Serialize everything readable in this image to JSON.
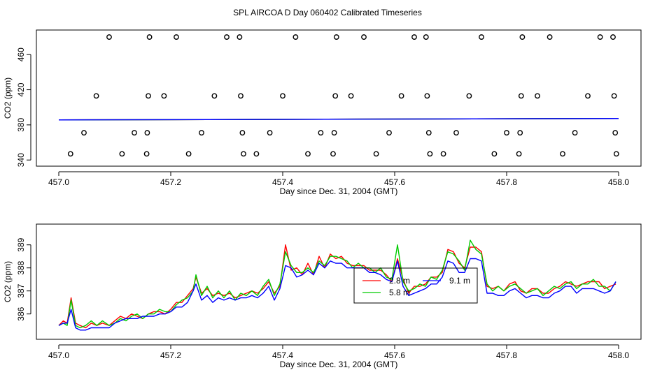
{
  "title": "SPL AIRCOA D  Day 060402  Calibrated Timeseries",
  "chart_data": [
    {
      "type": "scatter+line",
      "title": "",
      "xlabel": "Day since Dec. 31, 2004 (GMT)",
      "ylabel": "CO2 (ppm)",
      "xlim": [
        456.96,
        458.04
      ],
      "ylim": [
        333,
        488
      ],
      "x_ticks": [
        457.0,
        457.2,
        457.4,
        457.6,
        457.8,
        458.0
      ],
      "x_tick_labels": [
        "457.0",
        "457.2",
        "457.4",
        "457.6",
        "457.8",
        "458.0"
      ],
      "y_ticks": [
        340,
        380,
        420,
        460
      ],
      "y_tick_labels": [
        "340",
        "380",
        "420",
        "460"
      ],
      "calibration_points": [
        {
          "x": 457.021,
          "y": 347
        },
        {
          "x": 457.045,
          "y": 371
        },
        {
          "x": 457.067,
          "y": 413
        },
        {
          "x": 457.09,
          "y": 480
        },
        {
          "x": 457.113,
          "y": 347
        },
        {
          "x": 457.135,
          "y": 371
        },
        {
          "x": 457.157,
          "y": 347
        },
        {
          "x": 457.158,
          "y": 371
        },
        {
          "x": 457.16,
          "y": 413
        },
        {
          "x": 457.162,
          "y": 480
        },
        {
          "x": 457.188,
          "y": 413
        },
        {
          "x": 457.21,
          "y": 480
        },
        {
          "x": 457.232,
          "y": 347
        },
        {
          "x": 457.255,
          "y": 371
        },
        {
          "x": 457.278,
          "y": 413
        },
        {
          "x": 457.3,
          "y": 480
        },
        {
          "x": 457.323,
          "y": 480
        },
        {
          "x": 457.325,
          "y": 413
        },
        {
          "x": 457.328,
          "y": 371
        },
        {
          "x": 457.33,
          "y": 347
        },
        {
          "x": 457.353,
          "y": 347
        },
        {
          "x": 457.377,
          "y": 371
        },
        {
          "x": 457.4,
          "y": 413
        },
        {
          "x": 457.423,
          "y": 480
        },
        {
          "x": 457.445,
          "y": 347
        },
        {
          "x": 457.468,
          "y": 371
        },
        {
          "x": 457.49,
          "y": 347
        },
        {
          "x": 457.492,
          "y": 371
        },
        {
          "x": 457.494,
          "y": 413
        },
        {
          "x": 457.496,
          "y": 480
        },
        {
          "x": 457.522,
          "y": 413
        },
        {
          "x": 457.545,
          "y": 480
        },
        {
          "x": 457.567,
          "y": 347
        },
        {
          "x": 457.59,
          "y": 371
        },
        {
          "x": 457.612,
          "y": 413
        },
        {
          "x": 457.635,
          "y": 480
        },
        {
          "x": 457.656,
          "y": 480
        },
        {
          "x": 457.658,
          "y": 413
        },
        {
          "x": 457.661,
          "y": 371
        },
        {
          "x": 457.663,
          "y": 347
        },
        {
          "x": 457.687,
          "y": 347
        },
        {
          "x": 457.71,
          "y": 371
        },
        {
          "x": 457.733,
          "y": 413
        },
        {
          "x": 457.755,
          "y": 480
        },
        {
          "x": 457.778,
          "y": 347
        },
        {
          "x": 457.8,
          "y": 371
        },
        {
          "x": 457.822,
          "y": 347
        },
        {
          "x": 457.824,
          "y": 371
        },
        {
          "x": 457.826,
          "y": 413
        },
        {
          "x": 457.828,
          "y": 480
        },
        {
          "x": 457.855,
          "y": 413
        },
        {
          "x": 457.877,
          "y": 480
        },
        {
          "x": 457.9,
          "y": 347
        },
        {
          "x": 457.922,
          "y": 371
        },
        {
          "x": 457.945,
          "y": 413
        },
        {
          "x": 457.967,
          "y": 480
        },
        {
          "x": 457.99,
          "y": 480
        },
        {
          "x": 457.992,
          "y": 413
        },
        {
          "x": 457.994,
          "y": 371
        },
        {
          "x": 457.996,
          "y": 347
        }
      ],
      "series": [
        {
          "name": "2.8 m",
          "color": "#ff0000",
          "x": [
            457.0,
            458.0
          ],
          "y": [
            385.6,
            387.3
          ]
        },
        {
          "name": "5.8 m",
          "color": "#00cc00",
          "x": [
            457.0,
            458.0
          ],
          "y": [
            385.6,
            387.3
          ]
        },
        {
          "name": "9.1 m",
          "color": "#0000ff",
          "x": [
            457.0,
            458.0
          ],
          "y": [
            385.6,
            387.3
          ]
        }
      ]
    },
    {
      "type": "line",
      "title": "",
      "xlabel": "Day since Dec. 31, 2004 (GMT)",
      "ylabel": "CO2 (ppm)",
      "xlim": [
        456.96,
        458.04
      ],
      "ylim": [
        384.9,
        389.9
      ],
      "x_ticks": [
        457.0,
        457.2,
        457.4,
        457.6,
        457.8,
        458.0
      ],
      "x_tick_labels": [
        "457.0",
        "457.2",
        "457.4",
        "457.6",
        "457.8",
        "458.0"
      ],
      "y_ticks": [
        386,
        387,
        388,
        389
      ],
      "y_tick_labels": [
        "386",
        "387",
        "388",
        "389"
      ],
      "legend": {
        "placement": "center-right",
        "labels": [
          "2.8 m",
          "9.1 m",
          "5.8 m"
        ]
      },
      "series": [
        {
          "name": "2.8 m",
          "color": "#ff0000",
          "x": [
            457.0,
            457.008,
            457.015,
            457.022,
            457.03,
            457.038,
            457.048,
            457.058,
            457.068,
            457.078,
            457.09,
            457.1,
            457.11,
            457.12,
            457.13,
            457.14,
            457.15,
            457.16,
            457.17,
            457.18,
            457.19,
            457.2,
            457.21,
            457.22,
            457.23,
            457.24,
            457.245,
            457.255,
            457.265,
            457.275,
            457.285,
            457.295,
            457.305,
            457.315,
            457.325,
            457.335,
            457.345,
            457.355,
            457.365,
            457.375,
            457.385,
            457.395,
            457.405,
            457.415,
            457.425,
            457.435,
            457.445,
            457.455,
            457.465,
            457.475,
            457.485,
            457.495,
            457.505,
            457.515,
            457.525,
            457.535,
            457.545,
            457.555,
            457.565,
            457.575,
            457.585,
            457.595,
            457.605,
            457.615,
            457.625,
            457.635,
            457.645,
            457.655,
            457.665,
            457.675,
            457.685,
            457.695,
            457.705,
            457.715,
            457.725,
            457.735,
            457.745,
            457.755,
            457.765,
            457.775,
            457.785,
            457.795,
            457.805,
            457.815,
            457.825,
            457.835,
            457.845,
            457.855,
            457.865,
            457.875,
            457.885,
            457.895,
            457.905,
            457.915,
            457.925,
            457.935,
            457.945,
            457.955,
            457.965,
            457.975,
            457.985,
            457.995
          ],
          "y": [
            385.5,
            385.7,
            385.6,
            386.7,
            385.6,
            385.5,
            385.4,
            385.6,
            385.5,
            385.6,
            385.5,
            385.7,
            385.9,
            385.8,
            386.0,
            385.9,
            385.8,
            386.0,
            386.1,
            386.1,
            386.0,
            386.2,
            386.5,
            386.5,
            386.8,
            387.1,
            387.6,
            386.9,
            387.1,
            386.8,
            386.9,
            386.8,
            386.9,
            386.7,
            386.8,
            386.9,
            387.0,
            386.9,
            387.1,
            387.4,
            386.9,
            387.2,
            389.0,
            387.9,
            388.0,
            387.7,
            388.2,
            387.7,
            388.5,
            388.0,
            388.6,
            388.4,
            388.5,
            388.2,
            388.1,
            388.1,
            388.1,
            387.9,
            387.9,
            387.9,
            387.7,
            387.4,
            388.4,
            387.5,
            386.9,
            387.2,
            387.2,
            387.3,
            387.6,
            387.6,
            387.8,
            388.8,
            388.7,
            388.2,
            388.0,
            388.9,
            388.9,
            388.7,
            387.2,
            387.1,
            387.2,
            387.0,
            387.3,
            387.4,
            387.0,
            386.9,
            387.1,
            387.1,
            386.9,
            386.9,
            387.1,
            387.2,
            387.4,
            387.3,
            387.2,
            387.3,
            387.4,
            387.4,
            387.4,
            387.1,
            387.2,
            387.3
          ]
        },
        {
          "name": "5.8 m",
          "color": "#00cc00",
          "x": [
            457.0,
            457.008,
            457.015,
            457.022,
            457.03,
            457.038,
            457.048,
            457.058,
            457.068,
            457.078,
            457.09,
            457.1,
            457.11,
            457.12,
            457.13,
            457.14,
            457.15,
            457.16,
            457.17,
            457.18,
            457.19,
            457.2,
            457.21,
            457.22,
            457.23,
            457.24,
            457.245,
            457.255,
            457.265,
            457.275,
            457.285,
            457.295,
            457.305,
            457.315,
            457.325,
            457.335,
            457.345,
            457.355,
            457.365,
            457.375,
            457.385,
            457.395,
            457.405,
            457.415,
            457.425,
            457.435,
            457.445,
            457.455,
            457.465,
            457.475,
            457.485,
            457.495,
            457.505,
            457.515,
            457.525,
            457.535,
            457.545,
            457.555,
            457.565,
            457.575,
            457.585,
            457.595,
            457.605,
            457.615,
            457.625,
            457.635,
            457.645,
            457.655,
            457.665,
            457.675,
            457.685,
            457.695,
            457.705,
            457.715,
            457.725,
            457.735,
            457.745,
            457.755,
            457.765,
            457.775,
            457.785,
            457.795,
            457.805,
            457.815,
            457.825,
            457.835,
            457.845,
            457.855,
            457.865,
            457.875,
            457.885,
            457.895,
            457.905,
            457.915,
            457.925,
            457.935,
            457.945,
            457.955,
            457.965,
            457.975,
            457.985,
            457.995
          ],
          "y": [
            385.5,
            385.6,
            385.5,
            386.6,
            385.5,
            385.4,
            385.5,
            385.7,
            385.5,
            385.7,
            385.5,
            385.6,
            385.8,
            385.7,
            385.9,
            386.0,
            385.8,
            386.0,
            386.0,
            386.2,
            386.1,
            386.1,
            386.4,
            386.6,
            386.7,
            387.0,
            387.7,
            386.8,
            387.2,
            386.7,
            387.0,
            386.7,
            387.0,
            386.6,
            386.9,
            386.8,
            387.0,
            386.8,
            387.2,
            387.5,
            386.8,
            387.3,
            388.7,
            388.1,
            387.8,
            387.8,
            388.0,
            387.8,
            388.3,
            388.1,
            388.5,
            388.5,
            388.4,
            388.3,
            388.0,
            388.2,
            388.0,
            388.0,
            387.8,
            388.0,
            387.6,
            387.5,
            389.0,
            387.4,
            387.0,
            387.1,
            387.3,
            387.2,
            387.6,
            387.5,
            387.9,
            388.7,
            388.6,
            388.3,
            387.9,
            389.2,
            388.8,
            388.6,
            387.3,
            387.0,
            387.2,
            387.0,
            387.2,
            387.3,
            387.1,
            386.9,
            387.0,
            387.1,
            386.8,
            387.0,
            387.2,
            387.1,
            387.3,
            387.4,
            387.1,
            387.3,
            387.3,
            387.5,
            387.2,
            387.2,
            387.0,
            387.4
          ]
        },
        {
          "name": "9.1 m",
          "color": "#0000ff",
          "x": [
            457.0,
            457.008,
            457.015,
            457.022,
            457.03,
            457.038,
            457.048,
            457.058,
            457.068,
            457.078,
            457.09,
            457.1,
            457.11,
            457.12,
            457.13,
            457.14,
            457.15,
            457.16,
            457.17,
            457.18,
            457.19,
            457.2,
            457.21,
            457.22,
            457.23,
            457.24,
            457.245,
            457.255,
            457.265,
            457.275,
            457.285,
            457.295,
            457.305,
            457.315,
            457.325,
            457.335,
            457.345,
            457.355,
            457.365,
            457.375,
            457.385,
            457.395,
            457.405,
            457.415,
            457.425,
            457.435,
            457.445,
            457.455,
            457.465,
            457.475,
            457.485,
            457.495,
            457.505,
            457.515,
            457.525,
            457.535,
            457.545,
            457.555,
            457.565,
            457.575,
            457.585,
            457.595,
            457.605,
            457.615,
            457.625,
            457.635,
            457.645,
            457.655,
            457.665,
            457.675,
            457.685,
            457.695,
            457.705,
            457.715,
            457.725,
            457.735,
            457.745,
            457.755,
            457.765,
            457.775,
            457.785,
            457.795,
            457.805,
            457.815,
            457.825,
            457.835,
            457.845,
            457.855,
            457.865,
            457.875,
            457.885,
            457.895,
            457.905,
            457.915,
            457.925,
            457.935,
            457.945,
            457.955,
            457.965,
            457.975,
            457.985,
            457.995
          ],
          "y": [
            385.5,
            385.6,
            385.6,
            386.2,
            385.4,
            385.3,
            385.3,
            385.4,
            385.4,
            385.4,
            385.4,
            385.6,
            385.7,
            385.8,
            385.8,
            385.8,
            385.9,
            385.9,
            385.9,
            386.0,
            386.0,
            386.1,
            386.3,
            386.3,
            386.5,
            387.0,
            387.3,
            386.6,
            386.8,
            386.5,
            386.7,
            386.6,
            386.7,
            386.6,
            386.7,
            386.7,
            386.8,
            386.7,
            386.9,
            387.2,
            386.6,
            387.1,
            388.1,
            388.0,
            387.6,
            387.7,
            387.9,
            387.7,
            388.2,
            388.0,
            388.3,
            388.2,
            388.2,
            388.0,
            388.0,
            388.0,
            388.0,
            387.8,
            387.8,
            387.7,
            387.5,
            387.4,
            388.3,
            387.2,
            386.8,
            386.9,
            387.0,
            387.1,
            387.3,
            387.3,
            387.6,
            388.3,
            388.2,
            387.8,
            387.8,
            388.4,
            388.4,
            388.3,
            386.9,
            386.9,
            386.8,
            386.8,
            387.0,
            387.1,
            386.9,
            386.7,
            386.8,
            386.8,
            386.7,
            386.7,
            386.9,
            387.0,
            387.2,
            387.2,
            386.9,
            387.1,
            387.1,
            387.1,
            387.0,
            386.9,
            387.0,
            387.4
          ]
        }
      ]
    }
  ]
}
